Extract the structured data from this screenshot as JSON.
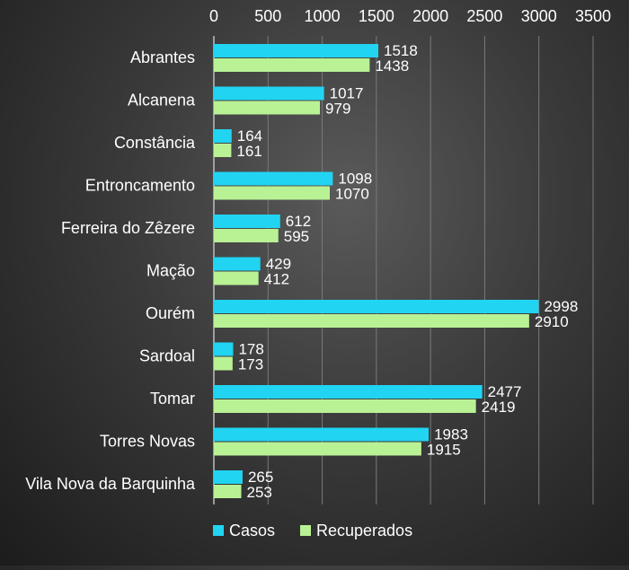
{
  "chart_data": {
    "type": "bar",
    "orientation": "horizontal",
    "title": "",
    "xlabel": "",
    "ylabel": "",
    "xlim": [
      0,
      3500
    ],
    "xticks": [
      0,
      500,
      1000,
      1500,
      2000,
      2500,
      3000,
      3500
    ],
    "grid": true,
    "axis_position": "top",
    "legend_position": "bottom",
    "categories": [
      "Abrantes",
      "Alcanena",
      "Constância",
      "Entroncamento",
      "Ferreira do Zêzere",
      "Mação",
      "Ourém",
      "Sardoal",
      "Tomar",
      "Torres Novas",
      "Vila Nova da Barquinha"
    ],
    "series": [
      {
        "name": "Casos",
        "color": "#21d4f2",
        "values": [
          1518,
          1017,
          164,
          1098,
          612,
          429,
          2998,
          178,
          2477,
          1983,
          265
        ]
      },
      {
        "name": "Recuperados",
        "color": "#b9f295",
        "values": [
          1438,
          979,
          161,
          1070,
          595,
          412,
          2910,
          173,
          2419,
          1915,
          253
        ]
      }
    ]
  }
}
